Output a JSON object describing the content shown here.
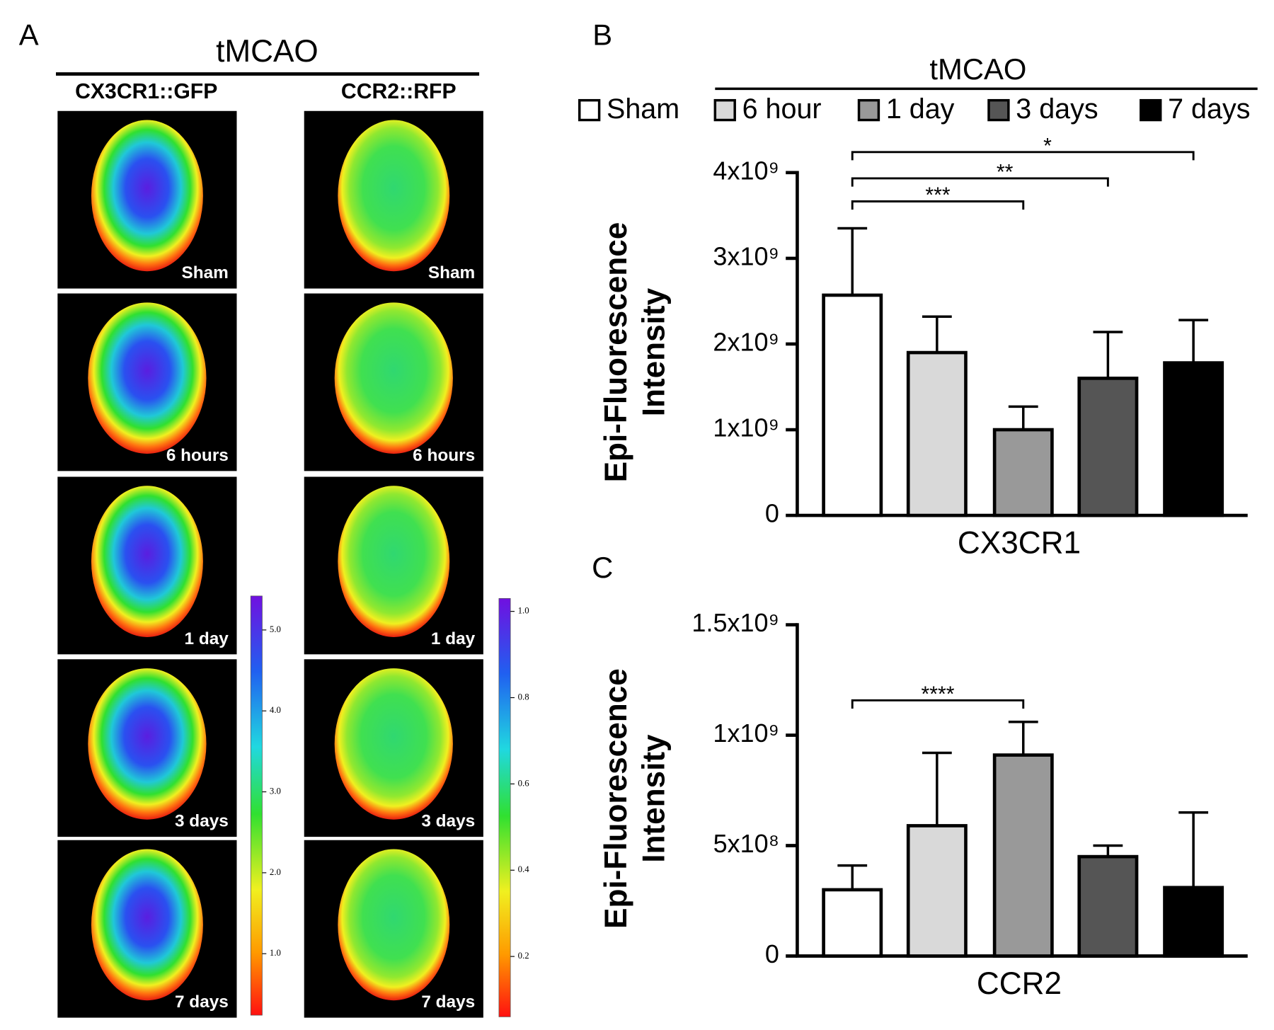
{
  "panel_labels": [
    "A",
    "B",
    "C"
  ],
  "panel_a": {
    "title": "tMCAO",
    "columns": [
      "CX3CR1::GFP",
      "CCR2::RFP"
    ],
    "row_labels": [
      [
        "Sham",
        "6 hours",
        "1 day",
        "3 days",
        "7 days"
      ],
      [
        "Sham",
        "6 hours",
        "1 day",
        "3 days",
        "7 days"
      ]
    ],
    "colorbars": [
      {
        "lim": [
          0.24,
          5.42
        ],
        "ticks": [
          {
            "value": 1,
            "label": "1.0"
          },
          {
            "value": 2,
            "label": "2.0"
          },
          {
            "value": 3,
            "label": "3.0"
          },
          {
            "value": 4,
            "label": "4.0"
          },
          {
            "value": 5,
            "label": "5.0"
          }
        ]
      },
      {
        "lim": [
          0.06,
          1.03
        ],
        "ticks": [
          {
            "value": 0.2,
            "label": "0.2"
          },
          {
            "value": 0.4,
            "label": "0.4"
          },
          {
            "value": 0.6,
            "label": "0.6"
          },
          {
            "value": 0.8,
            "label": "0.8"
          },
          {
            "value": 1,
            "label": "1.0"
          }
        ]
      }
    ]
  },
  "legend_title": "tMCAO",
  "chart_data": [
    {
      "type": "bar",
      "x_label": "CX3CR1",
      "y_label": [
        "Epi-Fluorescence",
        "Intensity"
      ],
      "ylim": [
        0,
        4000000000
      ],
      "yticks": [
        0,
        {
          "value": 1000000000,
          "label": "1x10⁹"
        },
        {
          "value": 2000000000,
          "label": "2x10⁹"
        },
        {
          "value": 3000000000,
          "label": "3x10⁹"
        },
        {
          "value": 4000000000,
          "label": "4x10⁹"
        }
      ],
      "series": [
        {
          "name": "Sham",
          "color": "#ffffff",
          "values": [
            2570000000
          ],
          "errors": [
            780000000
          ]
        },
        {
          "name": "6 hour",
          "color": "#d9d9d9",
          "values": [
            1900000000
          ],
          "errors": [
            420000000
          ]
        },
        {
          "name": "1 day",
          "color": "#999999",
          "values": [
            1000000000
          ],
          "errors": [
            270000000
          ]
        },
        {
          "name": "3 days",
          "color": "#555555",
          "values": [
            1600000000
          ],
          "errors": [
            540000000
          ]
        },
        {
          "name": "7 days",
          "color": "#000000",
          "values": [
            1780000000
          ],
          "errors": [
            500000000
          ]
        }
      ],
      "significance": [
        {
          "from": 0,
          "to": 2,
          "label": "***"
        },
        {
          "from": 0,
          "to": 3,
          "label": "**"
        },
        {
          "from": 0,
          "to": 4,
          "label": "*"
        }
      ]
    },
    {
      "type": "bar",
      "x_label": "CCR2",
      "y_label": [
        "Epi-Fluorescence",
        "Intensity"
      ],
      "ylim": [
        0,
        1500000000
      ],
      "yticks": [
        0,
        {
          "value": 500000000,
          "label": "5x10⁸"
        },
        {
          "value": 1000000000,
          "label": "1x10⁹"
        },
        {
          "value": 1500000000,
          "label": "1.5x10⁹"
        }
      ],
      "series": [
        {
          "color": "#ffffff",
          "values": [
            300000000
          ],
          "errors": [
            110000000
          ]
        },
        {
          "color": "#d9d9d9",
          "values": [
            590000000
          ],
          "errors": [
            330000000
          ]
        },
        {
          "color": "#999999",
          "values": [
            910000000
          ],
          "errors": [
            150000000
          ]
        },
        {
          "color": "#555555",
          "values": [
            450000000
          ],
          "errors": [
            50000000
          ]
        },
        {
          "color": "#000000",
          "values": [
            310000000
          ],
          "errors": [
            340000000
          ]
        }
      ],
      "significance": [
        {
          "from": 0,
          "to": 2,
          "label": "****"
        }
      ]
    }
  ]
}
